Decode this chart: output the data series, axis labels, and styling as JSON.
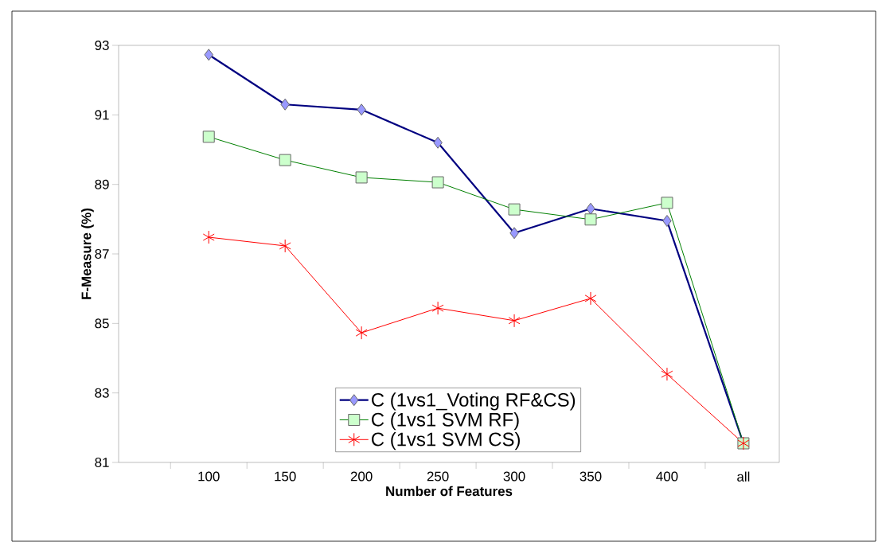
{
  "chart_data": {
    "type": "line",
    "xlabel": "Number of Features",
    "ylabel": "F-Measure (%)",
    "categories": [
      "100",
      "150",
      "200",
      "250",
      "300",
      "350",
      "400",
      "all"
    ],
    "ylim": [
      81,
      93
    ],
    "yticks": [
      81,
      83,
      85,
      87,
      89,
      91,
      93
    ],
    "grid": false,
    "legend": "bottom",
    "series": [
      {
        "name": "C (1vs1_Voting RF&CS)",
        "color": "#000080",
        "marker": "diamond",
        "values": [
          92.73,
          91.3,
          91.15,
          90.2,
          87.6,
          88.3,
          87.95,
          81.55
        ]
      },
      {
        "name": "C (1vs1 SVM RF)",
        "color": "#008000",
        "marker": "square",
        "values": [
          90.37,
          89.7,
          89.2,
          89.06,
          88.28,
          87.99,
          88.47,
          81.55
        ]
      },
      {
        "name": "C (1vs1 SVM CS)",
        "color": "#ff0000",
        "marker": "cross",
        "values": [
          87.48,
          87.23,
          84.73,
          85.44,
          85.08,
          85.72,
          83.54,
          81.55
        ]
      }
    ]
  }
}
